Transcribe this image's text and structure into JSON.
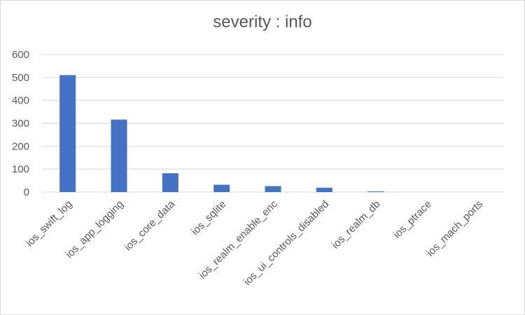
{
  "chart_data": {
    "type": "bar",
    "title": "severity : info",
    "categories": [
      "ios_swift_log",
      "ios_app_logging",
      "ios_core_data",
      "ios_sqlite",
      "ios_realm_enable_enc",
      "ios_ui_controls_disabled",
      "ios_realm_db",
      "ios_ptrace",
      "ios_mach_ports"
    ],
    "values": [
      510,
      316,
      82,
      32,
      26,
      19,
      3,
      0,
      0
    ],
    "ylim": [
      0,
      600
    ],
    "yticks": [
      0,
      100,
      200,
      300,
      400,
      500,
      600
    ],
    "grid": true,
    "legend": "none",
    "bar_color": "#4472c4",
    "grid_color": "#d9d9d9",
    "text_color": "#595959"
  }
}
